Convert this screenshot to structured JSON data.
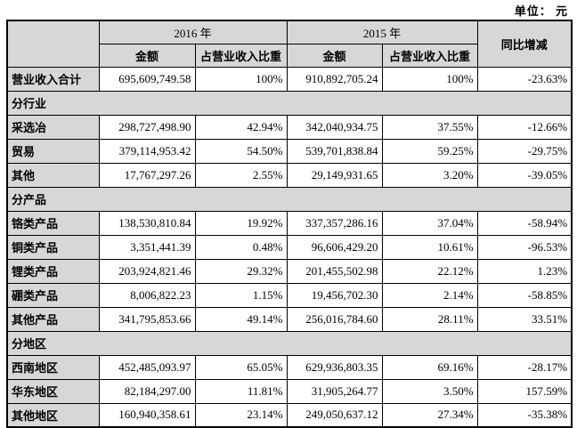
{
  "unit_label": "单位： 元",
  "table": {
    "header": {
      "year2016": "2016 年",
      "year2015": "2015 年",
      "amount2016": "金额",
      "ratio2016": "占营业收入比重",
      "amount2015": "金额",
      "ratio2015": "占营业收入比重",
      "yoy": "同比增减"
    },
    "rows": [
      {
        "type": "data",
        "label": "营业收入合计",
        "a2016": "695,609,749.58",
        "r2016": "100%",
        "a2015": "910,892,705.24",
        "r2015": "100%",
        "yoy": "-23.63%"
      },
      {
        "type": "section",
        "label": "分行业"
      },
      {
        "type": "data",
        "label": "采选冶",
        "a2016": "298,727,498.90",
        "r2016": "42.94%",
        "a2015": "342,040,934.75",
        "r2015": "37.55%",
        "yoy": "-12.66%"
      },
      {
        "type": "data",
        "label": "贸易",
        "a2016": "379,114,953.42",
        "r2016": "54.50%",
        "a2015": "539,701,838.84",
        "r2015": "59.25%",
        "yoy": "-29.75%"
      },
      {
        "type": "data",
        "label": "其他",
        "a2016": "17,767,297.26",
        "r2016": "2.55%",
        "a2015": "29,149,931.65",
        "r2015": "3.20%",
        "yoy": "-39.05%"
      },
      {
        "type": "section",
        "label": "分产品"
      },
      {
        "type": "data",
        "label": "铬类产品",
        "a2016": "138,530,810.84",
        "r2016": "19.92%",
        "a2015": "337,357,286.16",
        "r2015": "37.04%",
        "yoy": "-58.94%"
      },
      {
        "type": "data",
        "label": "铜类产品",
        "a2016": "3,351,441.39",
        "r2016": "0.48%",
        "a2015": "96,606,429.20",
        "r2015": "10.61%",
        "yoy": "-96.53%"
      },
      {
        "type": "data",
        "label": "锂类产品",
        "a2016": "203,924,821.46",
        "r2016": "29.32%",
        "a2015": "201,455,502.98",
        "r2015": "22.12%",
        "yoy": "1.23%"
      },
      {
        "type": "data",
        "label": "硼类产品",
        "a2016": "8,006,822.23",
        "r2016": "1.15%",
        "a2015": "19,456,702.30",
        "r2015": "2.14%",
        "yoy": "-58.85%"
      },
      {
        "type": "data",
        "label": "其他产品",
        "a2016": "341,795,853.66",
        "r2016": "49.14%",
        "a2015": "256,016,784.60",
        "r2015": "28.11%",
        "yoy": "33.51%"
      },
      {
        "type": "section",
        "label": "分地区"
      },
      {
        "type": "data",
        "label": "西南地区",
        "a2016": "452,485,093.97",
        "r2016": "65.05%",
        "a2015": "629,936,803.35",
        "r2015": "69.16%",
        "yoy": "-28.17%"
      },
      {
        "type": "data",
        "label": "华东地区",
        "a2016": "82,184,297.00",
        "r2016": "11.81%",
        "a2015": "31,905,264.77",
        "r2015": "3.50%",
        "yoy": "157.59%"
      },
      {
        "type": "data",
        "label": "其他地区",
        "a2016": "160,940,358.61",
        "r2016": "23.14%",
        "a2015": "249,050,637.12",
        "r2015": "27.34%",
        "yoy": "-35.38%"
      }
    ]
  },
  "colors": {
    "header_bg": "#d7d7d7",
    "border": "#000000",
    "text": "#000000",
    "page_bg": "#ffffff"
  }
}
